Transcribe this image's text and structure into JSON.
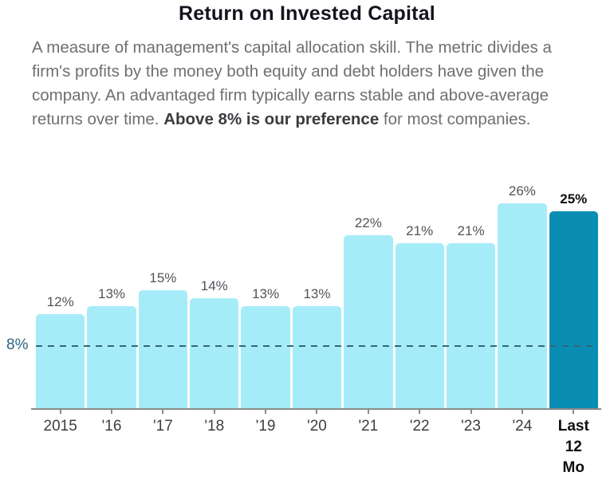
{
  "header": {
    "title": "Return on Invested Capital"
  },
  "description": {
    "part1": "A measure of management's capital allocation skill. The metric divides a firm's profits by the money both equity and debt holders have given the company. An advantaged firm typically earns stable and above-average returns over time. ",
    "bold": "Above 8% is our preference",
    "part2": " for most companies."
  },
  "chart_data": {
    "type": "bar",
    "title": "Return on Invested Capital",
    "xlabel": "",
    "ylabel": "",
    "ylim": [
      0,
      28.8
    ],
    "grid": false,
    "legend": "none",
    "categories": [
      "2015",
      "'16",
      "'17",
      "'18",
      "'19",
      "'20",
      "'21",
      "'22",
      "'23",
      "'24",
      "Last 12 Mo"
    ],
    "values": [
      12,
      13,
      15,
      14,
      13,
      13,
      22,
      21,
      21,
      26,
      25
    ],
    "bar_labels": [
      "12%",
      "13%",
      "15%",
      "14%",
      "13%",
      "13%",
      "22%",
      "21%",
      "21%",
      "26%",
      "25%"
    ],
    "highlight_index": 10,
    "reference_line": {
      "value": 8,
      "label": "8%",
      "style": "dashed"
    },
    "colors": {
      "bar": "#a5ecf8",
      "highlight_bar": "#0a8db2",
      "reference_line": "#33677c",
      "reference_label": "#2d6484",
      "axis": "#8a8a8a",
      "value_label": "#53535a",
      "highlight_value_label": "#0d0d0d"
    },
    "bars": [
      {
        "tick": "2015",
        "value": 12,
        "label": "12%",
        "highlight": false
      },
      {
        "tick": "'16",
        "value": 13,
        "label": "13%",
        "highlight": false
      },
      {
        "tick": "'17",
        "value": 15,
        "label": "15%",
        "highlight": false
      },
      {
        "tick": "'18",
        "value": 14,
        "label": "14%",
        "highlight": false
      },
      {
        "tick": "'19",
        "value": 13,
        "label": "13%",
        "highlight": false
      },
      {
        "tick": "'20",
        "value": 13,
        "label": "13%",
        "highlight": false
      },
      {
        "tick": "'21",
        "value": 22,
        "label": "22%",
        "highlight": false
      },
      {
        "tick": "'22",
        "value": 21,
        "label": "21%",
        "highlight": false
      },
      {
        "tick": "'23",
        "value": 21,
        "label": "21%",
        "highlight": false
      },
      {
        "tick": "'24",
        "value": 26,
        "label": "26%",
        "highlight": false
      },
      {
        "tick": "Last\n12\nMo",
        "value": 25,
        "label": "25%",
        "highlight": true
      }
    ]
  }
}
